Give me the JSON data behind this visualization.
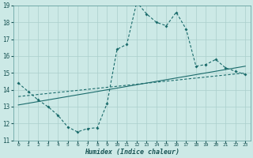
{
  "xlabel": "Humidex (Indice chaleur)",
  "bg_color": "#cce9e6",
  "grid_color": "#aacfcc",
  "line_color": "#1a6b6b",
  "xlim": [
    -0.5,
    23.5
  ],
  "ylim": [
    11,
    19
  ],
  "xticks": [
    0,
    1,
    2,
    3,
    4,
    5,
    6,
    7,
    8,
    9,
    10,
    11,
    12,
    13,
    14,
    15,
    16,
    17,
    18,
    19,
    20,
    21,
    22,
    23
  ],
  "yticks": [
    11,
    12,
    13,
    14,
    15,
    16,
    17,
    18,
    19
  ],
  "line1_x": [
    0,
    1,
    2,
    3,
    4,
    5,
    6,
    7,
    8,
    9,
    10,
    11,
    12,
    13,
    14,
    15,
    16,
    17,
    18,
    19,
    20,
    21,
    22,
    23
  ],
  "line1_y": [
    14.4,
    13.9,
    13.4,
    13.0,
    12.5,
    11.8,
    11.5,
    11.7,
    11.75,
    13.2,
    16.4,
    16.7,
    19.2,
    18.5,
    18.0,
    17.8,
    18.6,
    17.6,
    15.4,
    15.5,
    15.8,
    15.3,
    15.1,
    14.9
  ],
  "line2_x": [
    0,
    23
  ],
  "line2_y": [
    13.1,
    15.4
  ],
  "line3_x": [
    0,
    23
  ],
  "line3_y": [
    13.6,
    15.0
  ]
}
